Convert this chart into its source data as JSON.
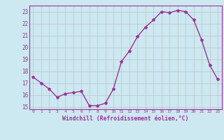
{
  "x": [
    0,
    1,
    2,
    3,
    4,
    5,
    6,
    7,
    8,
    9,
    10,
    11,
    12,
    13,
    14,
    15,
    16,
    17,
    18,
    19,
    20,
    21,
    22,
    23
  ],
  "y": [
    17.5,
    17.0,
    16.5,
    15.8,
    16.1,
    16.2,
    16.3,
    15.1,
    15.1,
    15.3,
    16.5,
    18.8,
    19.7,
    20.9,
    21.7,
    22.3,
    23.0,
    22.9,
    23.1,
    23.0,
    22.3,
    20.6,
    18.5,
    17.3
  ],
  "line_color": "#993399",
  "marker": "*",
  "marker_size": 3,
  "bg_color": "#cce8f0",
  "grid_color": "#bbbbbb",
  "xlabel": "Windchill (Refroidissement éolien,°C)",
  "xlabel_color": "#993399",
  "tick_color": "#993399",
  "ylim": [
    14.8,
    23.5
  ],
  "yticks": [
    15,
    16,
    17,
    18,
    19,
    20,
    21,
    22,
    23
  ],
  "xlim": [
    -0.5,
    23.5
  ],
  "xticks": [
    0,
    1,
    2,
    3,
    4,
    5,
    6,
    7,
    8,
    9,
    10,
    11,
    12,
    13,
    14,
    15,
    16,
    17,
    18,
    19,
    20,
    21,
    22,
    23
  ]
}
